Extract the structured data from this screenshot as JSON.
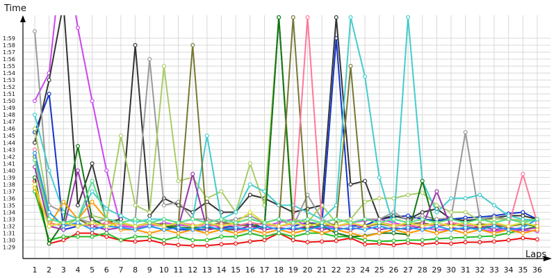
{
  "chart_data": {
    "type": "line",
    "title": "",
    "xlabel": "Laps",
    "ylabel": "Time",
    "grid": true,
    "legend": "none",
    "x": [
      1,
      2,
      3,
      4,
      5,
      6,
      7,
      8,
      9,
      10,
      11,
      12,
      13,
      14,
      15,
      16,
      17,
      18,
      19,
      20,
      21,
      22,
      23,
      24,
      25,
      26,
      27,
      28,
      29,
      30,
      31,
      32,
      33,
      34,
      35,
      36
    ],
    "xlim": [
      1,
      36
    ],
    "ylim_seconds": [
      89,
      122
    ],
    "y_tick_labels": [
      "1:29",
      "1:30",
      "1:31",
      "1:32",
      "1:33",
      "1:34",
      "1:35",
      "1:36",
      "1:37",
      "1:38",
      "1:39",
      "1:40",
      "1:41",
      "1:42",
      "1:43",
      "1:44",
      "1:45",
      "1:46",
      "1:47",
      "1:48",
      "1:49",
      "1:50",
      "1:51",
      "1:52",
      "1:53",
      "1:54",
      "1:55",
      "1:56",
      "1:57",
      "1:58",
      "1:59"
    ],
    "series": [
      {
        "color": "#ee1111",
        "values": [
          98.5,
          89.5,
          90.0,
          91.0,
          91.0,
          90.5,
          90.0,
          89.8,
          90.0,
          89.5,
          89.3,
          89.2,
          89.2,
          89.4,
          89.5,
          89.8,
          90.0,
          91.0,
          90.0,
          89.7,
          89.8,
          89.9,
          90.3,
          89.4,
          89.5,
          89.3,
          89.6,
          89.4,
          89.6,
          89.5,
          89.7,
          89.7,
          89.8,
          90.0,
          90.3,
          90.1
        ]
      },
      {
        "color": "#22bb22",
        "values": [
          97.0,
          90.0,
          90.5,
          90.5,
          90.5,
          91.0,
          90.0,
          90.5,
          90.5,
          90.0,
          90.5,
          90.0,
          90.0,
          90.5,
          90.5,
          91.0,
          90.5,
          91.0,
          90.5,
          91.0,
          91.0,
          90.5,
          90.5,
          90.0,
          89.8,
          89.9,
          90.0,
          90.0,
          90.2,
          90.3,
          90.4,
          90.5,
          90.6,
          91.0,
          91.5,
          92.0
        ]
      },
      {
        "color": "#1133cc",
        "values": [
          105.5,
          111.0,
          91.5,
          92.0,
          92.5,
          93.0,
          92.5,
          92.0,
          92.5,
          92.0,
          91.5,
          91.5,
          91.5,
          91.8,
          92.0,
          92.3,
          91.8,
          122.0,
          92.0,
          92.5,
          92.3,
          119.0,
          92.0,
          92.1,
          93.0,
          93.3,
          93.5,
          93.0,
          92.8,
          93.0,
          93.2,
          93.3,
          93.5,
          93.8,
          94.0,
          93.0
        ]
      },
      {
        "color": "#cc44ee",
        "values": [
          110.0,
          114.0,
          133.0,
          120.5,
          110.0,
          100.0,
          92.0,
          91.8,
          92.0,
          92.5,
          92.2,
          92.0,
          92.4,
          91.8,
          91.5,
          91.5,
          92.0,
          92.5,
          93.0,
          92.0,
          91.8,
          92.0,
          92.5,
          92.8,
          93.0,
          92.5,
          92.0,
          91.8,
          91.5,
          91.5,
          91.8,
          91.5,
          91.3,
          91.5,
          91.4,
          91.3
        ]
      },
      {
        "color": "#333333",
        "values": [
          104.0,
          113.0,
          124.0,
          95.0,
          101.0,
          92.5,
          93.0,
          118.0,
          93.5,
          96.0,
          95.0,
          94.0,
          95.5,
          94.0,
          94.0,
          96.5,
          96.0,
          95.0,
          94.0,
          94.5,
          95.0,
          122.0,
          98.0,
          98.5,
          93.0,
          93.5,
          93.0,
          94.0,
          94.5,
          93.0,
          92.8,
          93.0,
          93.2,
          93.5,
          93.5,
          93.0
        ]
      },
      {
        "color": "#999999",
        "values": [
          120.0,
          95.0,
          94.0,
          93.0,
          92.5,
          93.0,
          92.5,
          93.0,
          116.0,
          95.0,
          95.5,
          93.0,
          93.0,
          92.5,
          93.0,
          93.5,
          92.5,
          93.0,
          92.0,
          96.5,
          93.0,
          92.0,
          92.5,
          93.0,
          93.0,
          94.0,
          92.8,
          93.5,
          93.0,
          93.2,
          105.5,
          93.0,
          93.3,
          93.0,
          92.8,
          93.0
        ]
      },
      {
        "color": "#a8cc66",
        "values": [
          106.0,
          94.0,
          92.0,
          93.0,
          93.5,
          93.0,
          105.0,
          95.0,
          94.0,
          115.0,
          98.5,
          99.0,
          96.0,
          97.0,
          94.0,
          101.0,
          95.0,
          122.0,
          93.0,
          92.5,
          95.0,
          92.5,
          93.0,
          95.5,
          96.0,
          96.0,
          96.5,
          96.8,
          95.0,
          94.0,
          94.0,
          92.8,
          93.0,
          93.0,
          92.8,
          93.0
        ]
      },
      {
        "color": "#44cccc",
        "values": [
          108.0,
          100.0,
          94.0,
          93.0,
          97.0,
          94.5,
          93.5,
          92.5,
          93.0,
          93.0,
          92.5,
          93.0,
          105.0,
          93.0,
          94.0,
          98.0,
          97.0,
          95.0,
          95.0,
          94.0,
          93.0,
          95.0,
          122.0,
          113.5,
          99.0,
          92.0,
          122.0,
          98.5,
          94.0,
          96.0,
          96.0,
          96.5,
          95.0,
          93.5,
          93.0,
          92.8
        ]
      },
      {
        "color": "#117711",
        "values": [
          99.0,
          89.5,
          92.5,
          103.5,
          93.0,
          92.0,
          92.5,
          92.0,
          92.3,
          92.0,
          91.8,
          91.8,
          91.8,
          91.5,
          91.5,
          92.0,
          91.8,
          122.0,
          91.5,
          91.8,
          92.0,
          91.0,
          90.5,
          90.6,
          91.0,
          91.0,
          90.8,
          98.5,
          91.0,
          91.5,
          91.8,
          91.8,
          92.0,
          92.0,
          92.3,
          92.0
        ]
      },
      {
        "color": "#777733",
        "values": [
          102.0,
          93.0,
          92.5,
          93.0,
          92.0,
          92.5,
          92.3,
          92.0,
          92.5,
          92.2,
          92.0,
          118.0,
          92.0,
          92.5,
          92.3,
          92.0,
          92.5,
          92.0,
          122.0,
          92.5,
          92.0,
          92.3,
          115.0,
          92.0,
          92.3,
          92.0,
          92.3,
          92.5,
          92.0,
          92.3,
          92.0,
          92.3,
          92.2,
          92.0,
          92.3,
          92.1
        ]
      },
      {
        "color": "#ff7799",
        "values": [
          103.0,
          92.5,
          92.0,
          92.3,
          92.0,
          92.5,
          92.2,
          92.0,
          92.3,
          92.0,
          92.5,
          92.2,
          92.0,
          92.3,
          92.0,
          92.5,
          92.2,
          92.0,
          92.3,
          122.0,
          92.5,
          92.0,
          92.3,
          92.0,
          92.5,
          92.2,
          92.0,
          92.3,
          92.0,
          92.5,
          92.2,
          92.0,
          92.3,
          92.0,
          99.5,
          92.5
        ]
      },
      {
        "color": "#9933aa",
        "values": [
          100.5,
          92.0,
          91.5,
          100.0,
          92.0,
          91.5,
          91.8,
          91.5,
          92.0,
          91.5,
          91.8,
          99.5,
          91.5,
          91.8,
          91.5,
          92.0,
          91.5,
          91.8,
          91.5,
          92.0,
          91.5,
          91.8,
          91.5,
          92.0,
          91.5,
          91.8,
          91.5,
          92.0,
          97.0,
          91.8,
          91.5,
          92.0,
          91.5,
          91.8,
          91.5,
          91.8
        ]
      },
      {
        "color": "#ff9900",
        "values": [
          97.5,
          92.0,
          95.5,
          93.0,
          95.5,
          93.0,
          91.5,
          91.5,
          91.0,
          91.5,
          91.0,
          91.5,
          91.0,
          91.5,
          91.0,
          91.5,
          91.0,
          91.5,
          91.0,
          91.5,
          91.0,
          91.5,
          91.0,
          90.5,
          91.0,
          91.5,
          91.0,
          91.5,
          91.0,
          91.5,
          91.0,
          91.5,
          91.0,
          91.5,
          91.0,
          91.5
        ]
      },
      {
        "color": "#2299ee",
        "values": [
          102.5,
          94.0,
          92.0,
          92.5,
          91.5,
          92.0,
          91.8,
          91.5,
          92.0,
          91.5,
          91.8,
          91.5,
          92.0,
          91.5,
          91.8,
          91.5,
          92.0,
          91.5,
          91.8,
          91.5,
          92.0,
          91.5,
          91.8,
          91.5,
          92.0,
          91.5,
          91.8,
          91.5,
          92.0,
          91.5,
          91.8,
          91.5,
          92.0,
          91.5,
          91.8,
          93.0
        ]
      },
      {
        "color": "#dddd33",
        "values": [
          98.0,
          92.0,
          92.5,
          92.0,
          92.5,
          92.0,
          92.5,
          92.0,
          92.5,
          92.0,
          92.5,
          92.0,
          92.5,
          92.0,
          92.5,
          94.0,
          92.5,
          92.0,
          92.5,
          92.0,
          92.5,
          92.0,
          92.5,
          92.0,
          92.5,
          92.0,
          92.5,
          92.0,
          92.5,
          92.0,
          92.5,
          92.0,
          92.5,
          92.0,
          92.5,
          92.0
        ]
      },
      {
        "color": "#55dd88",
        "values": [
          101.5,
          93.0,
          92.5,
          93.0,
          98.5,
          93.0,
          92.5,
          93.0,
          92.5,
          93.0,
          92.5,
          93.0,
          92.5,
          93.0,
          92.5,
          93.0,
          92.5,
          93.0,
          92.5,
          93.0,
          92.5,
          93.0,
          92.5,
          93.0,
          92.5,
          93.0,
          92.5,
          93.0,
          92.5,
          93.0,
          92.5,
          93.0,
          92.5,
          93.0,
          92.5,
          93.0
        ]
      }
    ]
  }
}
